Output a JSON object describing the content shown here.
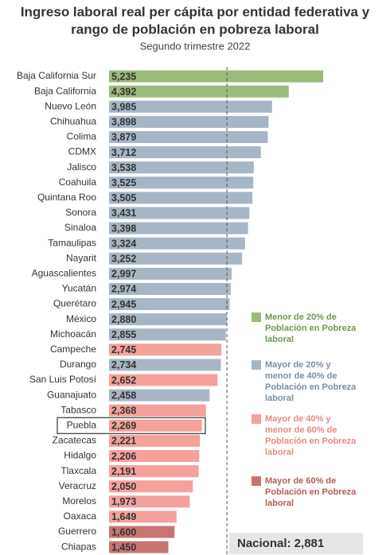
{
  "chart_data": {
    "type": "hbar",
    "title": [
      "Ingreso laboral real per cápita por entidad federativa y",
      "rango de población en pobreza laboral"
    ],
    "subtitle": "Segundo trimestre 2022",
    "categories": [
      "Baja California Sur",
      "Baja California",
      "Nuevo León",
      "Chihuahua",
      "Colima",
      "CDMX",
      "Jalisco",
      "Coahuila",
      "Quintana Roo",
      "Sonora",
      "Sinaloa",
      "Tamaulipas",
      "Nayarit",
      "Aguascalientes",
      "Yucatán",
      "Querétaro",
      "México",
      "Michoacán",
      "Campeche",
      "Durango",
      "San Luis Potosí",
      "Guanajuato",
      "Tabasco",
      "Puebla",
      "Zacatecas",
      "Hidalgo",
      "Tlaxcala",
      "Veracruz",
      "Morelos",
      "Oaxaca",
      "Guerrero",
      "Chiapas"
    ],
    "values": [
      5235,
      4392,
      3985,
      3898,
      3879,
      3712,
      3538,
      3525,
      3505,
      3431,
      3398,
      3324,
      3252,
      2997,
      2974,
      2945,
      2880,
      2855,
      2745,
      2734,
      2652,
      2458,
      2368,
      2269,
      2221,
      2206,
      2191,
      2050,
      1973,
      1649,
      1600,
      1450
    ],
    "value_labels": [
      "5,235",
      "4,392",
      "3,985",
      "3,898",
      "3,879",
      "3,712",
      "3,538",
      "3,525",
      "3,505",
      "3,431",
      "3,398",
      "3,324",
      "3,252",
      "2,997",
      "2,974",
      "2,945",
      "2,880",
      "2,855",
      "2,745",
      "2,734",
      "2,652",
      "2,458",
      "2,368",
      "2,269",
      "2,221",
      "2,206",
      "2,191",
      "2,050",
      "1,973",
      "1,649",
      "1,600",
      "1,450"
    ],
    "group": [
      0,
      0,
      1,
      1,
      1,
      1,
      1,
      1,
      1,
      1,
      1,
      1,
      1,
      1,
      1,
      1,
      1,
      1,
      2,
      1,
      2,
      1,
      2,
      2,
      2,
      2,
      2,
      2,
      2,
      2,
      3,
      3
    ],
    "groups": [
      {
        "name": "Menor de 20% de Población en Pobreza laboral",
        "color": "#9bbb7b",
        "text_color": "#6e9a48"
      },
      {
        "name": "Mayor de 20% y menor de 40% de Población en Pobreza laboral",
        "color": "#a7b6c5",
        "text_color": "#7b8ea2"
      },
      {
        "name": "Mayor de 40% y menor de 60% de Población en Pobreza laboral",
        "color": "#f5a19c",
        "text_color": "#ef8680"
      },
      {
        "name": "Mayor de 60% de Población en Pobreza laboral",
        "color": "#c9756f",
        "text_color": "#b65c55"
      }
    ],
    "national": {
      "value": 2881,
      "label": "Nacional: 2,881"
    },
    "highlight": 23,
    "xlim": [
      0,
      5700
    ]
  }
}
